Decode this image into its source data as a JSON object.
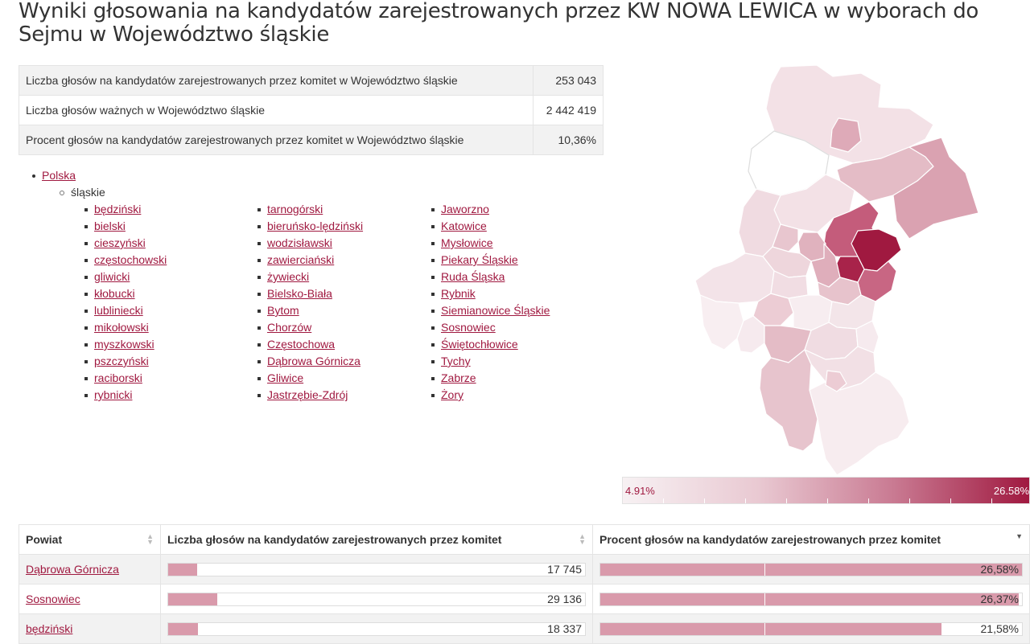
{
  "title": "Wyniki głosowania na kandydatów zarejestrowanych przez KW NOWA LEWICA w wyborach do Sejmu w Województwo śląskie",
  "summary": [
    {
      "label": "Liczba głosów na kandydatów zarejestrowanych przez komitet w Województwo śląskie",
      "value": "253 043"
    },
    {
      "label": "Liczba głosów ważnych w Województwo śląskie",
      "value": "2 442 419"
    },
    {
      "label": "Procent głosów na kandydatów zarejestrowanych przez komitet w Województwo śląskie",
      "value": "10,36%"
    }
  ],
  "tree": {
    "root": "Polska",
    "region": "śląskie",
    "columns": [
      [
        "będziński",
        "bielski",
        "cieszyński",
        "częstochowski",
        "gliwicki",
        "kłobucki",
        "lubliniecki",
        "mikołowski",
        "myszkowski",
        "pszczyński",
        "raciborski",
        "rybnicki"
      ],
      [
        "tarnogórski",
        "bieruńsko-lędziński",
        "wodzisławski",
        "zawierciański",
        "żywiecki",
        "Bielsko-Biała",
        "Bytom",
        "Chorzów",
        "Częstochowa",
        "Dąbrowa Górnicza",
        "Gliwice",
        "Jastrzębie-Zdrój"
      ],
      [
        "Jaworzno",
        "Katowice",
        "Mysłowice",
        "Piekary Śląskie",
        "Ruda Śląska",
        "Rybnik",
        "Siemianowice Śląskie",
        "Sosnowiec",
        "Świętochłowice",
        "Tychy",
        "Zabrze",
        "Żory"
      ]
    ]
  },
  "legend": {
    "min": "4.91%",
    "max": "26.58%"
  },
  "colors": {
    "accent": "#a01940",
    "bar": "#d99aab"
  },
  "table": {
    "headers": [
      "Powiat",
      "Liczba głosów na kandydatów zarejestrowanych przez komitet",
      "Procent głosów na kandydatów zarejestrowanych przez komitet"
    ],
    "rows": [
      {
        "name": "Dąbrowa Górnicza",
        "votes": "17 745",
        "votes_fraction": 0.069,
        "percent": "26,58%",
        "percent_fraction": 1.0
      },
      {
        "name": "Sosnowiec",
        "votes": "29 136",
        "votes_fraction": 0.117,
        "percent": "26,37%",
        "percent_fraction": 0.992
      },
      {
        "name": "będziński",
        "votes": "18 337",
        "votes_fraction": 0.071,
        "percent": "21,58%",
        "percent_fraction": 0.81
      }
    ]
  }
}
